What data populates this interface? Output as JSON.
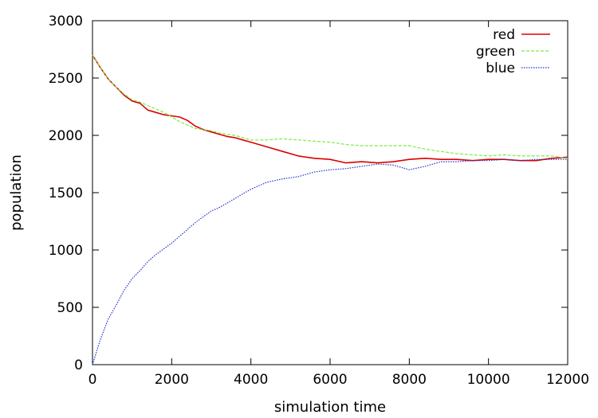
{
  "chart_data": {
    "type": "line",
    "xlabel": "simulation time",
    "ylabel": "population",
    "xlim": [
      0,
      12000
    ],
    "ylim": [
      0,
      3000
    ],
    "xticks": [
      0,
      2000,
      4000,
      6000,
      8000,
      10000,
      12000
    ],
    "yticks": [
      0,
      500,
      1000,
      1500,
      2000,
      2500,
      3000
    ],
    "xtick_labels": [
      "0",
      "2000",
      "4000",
      "6000",
      "8000",
      "10000",
      "12000"
    ],
    "ytick_labels": [
      "0",
      "500",
      "1000",
      "1500",
      "2000",
      "2500",
      "3000"
    ],
    "grid": false,
    "legend_position": "top-right",
    "series": [
      {
        "name": "red",
        "color": "#dd0000",
        "dash": "solid",
        "x": [
          0,
          200,
          400,
          600,
          800,
          1000,
          1200,
          1400,
          1600,
          1800,
          2000,
          2200,
          2400,
          2600,
          2800,
          3000,
          3200,
          3400,
          3600,
          3800,
          4000,
          4400,
          4800,
          5200,
          5600,
          6000,
          6400,
          6800,
          7200,
          7600,
          8000,
          8400,
          8800,
          9200,
          9600,
          10000,
          10400,
          10800,
          11200,
          11600,
          12000
        ],
        "y": [
          2700,
          2590,
          2490,
          2420,
          2350,
          2300,
          2280,
          2220,
          2200,
          2180,
          2170,
          2160,
          2130,
          2080,
          2050,
          2030,
          2010,
          1990,
          1980,
          1960,
          1940,
          1900,
          1860,
          1820,
          1800,
          1790,
          1760,
          1770,
          1760,
          1770,
          1790,
          1800,
          1790,
          1790,
          1780,
          1790,
          1790,
          1780,
          1780,
          1800,
          1810
        ]
      },
      {
        "name": "green",
        "color": "#77ee44",
        "dash": "dashed",
        "x": [
          0,
          200,
          400,
          600,
          800,
          1000,
          1200,
          1400,
          1600,
          1800,
          2000,
          2200,
          2400,
          2600,
          2800,
          3000,
          3200,
          3400,
          3600,
          3800,
          4000,
          4400,
          4800,
          5200,
          5600,
          6000,
          6400,
          6800,
          7200,
          7600,
          8000,
          8400,
          8800,
          9200,
          9600,
          10000,
          10400,
          10800,
          11200,
          11600,
          12000
        ],
        "y": [
          2700,
          2590,
          2490,
          2420,
          2360,
          2310,
          2290,
          2260,
          2230,
          2200,
          2160,
          2120,
          2090,
          2060,
          2050,
          2040,
          2020,
          2010,
          2000,
          1980,
          1960,
          1960,
          1970,
          1960,
          1950,
          1940,
          1920,
          1910,
          1910,
          1910,
          1910,
          1880,
          1860,
          1840,
          1830,
          1820,
          1830,
          1820,
          1820,
          1820,
          1800
        ]
      },
      {
        "name": "blue",
        "color": "#2233cc",
        "dash": "dotted",
        "x": [
          0,
          200,
          400,
          600,
          800,
          1000,
          1200,
          1400,
          1600,
          1800,
          2000,
          2200,
          2400,
          2600,
          2800,
          3000,
          3200,
          3400,
          3600,
          3800,
          4000,
          4400,
          4800,
          5200,
          5600,
          6000,
          6400,
          6800,
          7200,
          7600,
          8000,
          8400,
          8800,
          9200,
          9600,
          10000,
          10400,
          10800,
          11200,
          11600,
          12000
        ],
        "y": [
          0,
          220,
          400,
          520,
          650,
          750,
          820,
          900,
          960,
          1010,
          1060,
          1120,
          1180,
          1240,
          1290,
          1340,
          1370,
          1410,
          1450,
          1490,
          1530,
          1590,
          1620,
          1640,
          1680,
          1700,
          1710,
          1730,
          1750,
          1740,
          1700,
          1730,
          1770,
          1770,
          1780,
          1780,
          1790,
          1780,
          1790,
          1790,
          1790
        ]
      }
    ]
  }
}
